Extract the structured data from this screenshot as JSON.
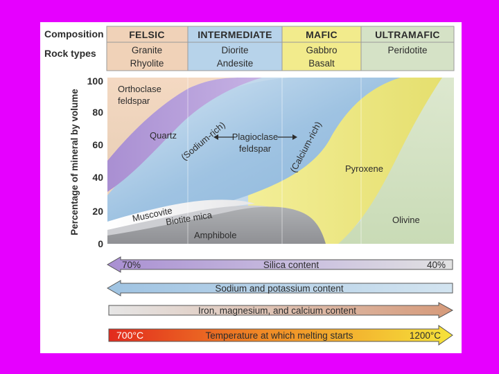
{
  "header": {
    "composition_label": "Composition",
    "rock_types_label": "Rock types",
    "columns": [
      {
        "title": "FELSIC",
        "rock1": "Granite",
        "rock2": "Rhyolite",
        "color": "#f0d2b8"
      },
      {
        "title": "INTERMEDIATE",
        "rock1": "Diorite",
        "rock2": "Andesite",
        "color": "#b7d3ea"
      },
      {
        "title": "MAFIC",
        "rock1": "Gabbro",
        "rock2": "Basalt",
        "color": "#f2eb8c"
      },
      {
        "title": "ULTRAMAFIC",
        "rock1": "Peridotite",
        "rock2": "",
        "color": "#d5e2c6"
      }
    ]
  },
  "axis": {
    "ylabel": "Percentage of mineral by volume",
    "ticks": [
      "100",
      "80",
      "60",
      "40",
      "20",
      "0"
    ]
  },
  "minerals": {
    "orthoclase1": "Orthoclase",
    "orthoclase2": "feldspar",
    "quartz": "Quartz",
    "sodium_rich": "(Sodium-rich)",
    "plagioclase1": "Plagioclase",
    "plagioclase2": "feldspar",
    "calcium_rich": "(Calcium-rich)",
    "pyroxene": "Pyroxene",
    "muscovite": "Muscovite",
    "biotite": "Biotite mica",
    "amphibole": "Amphibole",
    "olivine": "Olivine"
  },
  "arrows": {
    "silica_left": "70%",
    "silica_label": "Silica content",
    "silica_right": "40%",
    "sodium_label": "Sodium and potassium content",
    "iron_label": "Iron, magnesium, and calcium content",
    "temp_left": "700°C",
    "temp_label": "Temperature at which melting starts",
    "temp_right": "1200°C"
  },
  "colors": {
    "frame": "#e600ff",
    "orthoclase": "#efc9ae",
    "quartz": "#b49ad6",
    "plagioclase": "#a9cbe6",
    "pyroxene": "#ece77e",
    "olivine": "#d2e2c0",
    "biotite": "#cfcfd2",
    "amphibole": "#9b9ca0"
  }
}
